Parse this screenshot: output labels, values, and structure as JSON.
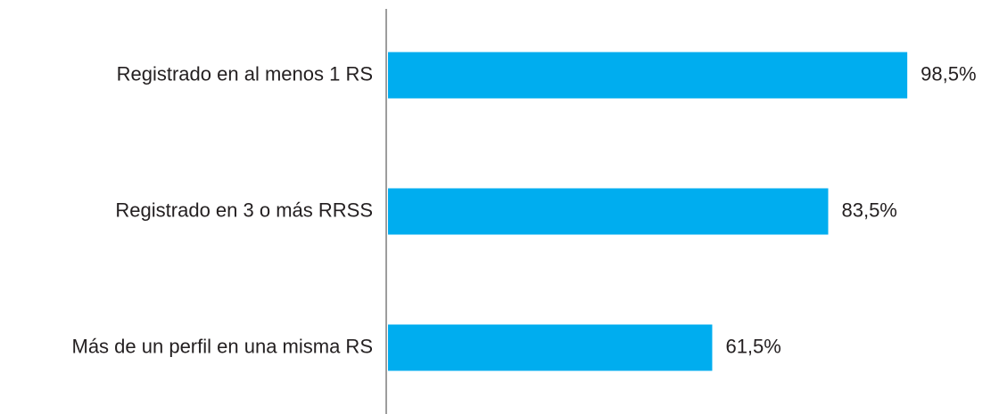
{
  "chart_data": {
    "type": "bar",
    "orientation": "horizontal",
    "categories": [
      "Registrado en al menos 1 RS",
      "Registrado en 3 o más RRSS",
      "Más de un perfil en una misma RS"
    ],
    "values": [
      98.5,
      83.5,
      61.5
    ],
    "value_labels": [
      "98,5%",
      "83,5%",
      "61,5%"
    ],
    "color": "#00adef"
  }
}
